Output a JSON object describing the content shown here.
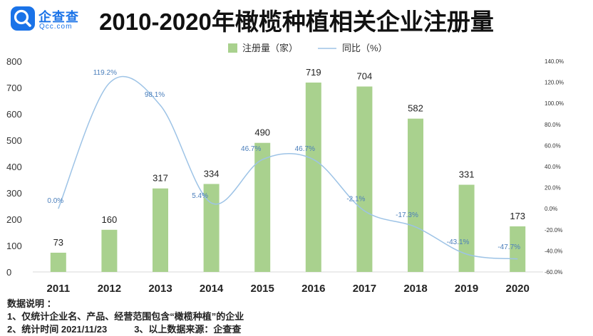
{
  "brand": {
    "name": "企查查",
    "domain": "Qcc.com",
    "accent": "#1a73e8"
  },
  "title": "2010-2020年橄榄种植相关企业注册量",
  "notes": {
    "heading": "数据说明 ：",
    "line1": "1、仅统计企业名、产品、经营范围包含“橄榄种植”的企业",
    "line2a": "2、统计时间 2021/11/23",
    "line2b": "3、以上数据来源：企查查"
  },
  "chart_data": {
    "type": "bar",
    "categories": [
      "2011",
      "2012",
      "2013",
      "2014",
      "2015",
      "2016",
      "2017",
      "2018",
      "2019",
      "2020"
    ],
    "series": [
      {
        "name": "注册量（家）",
        "kind": "bar",
        "color": "#a9d18e",
        "values": [
          73,
          160,
          317,
          334,
          490,
          719,
          704,
          582,
          331,
          173
        ],
        "labels": [
          "73",
          "160",
          "317",
          "334",
          "490",
          "719",
          "704",
          "582",
          "331",
          "173"
        ],
        "axis": "left"
      },
      {
        "name": "同比（%）",
        "kind": "line",
        "color": "#9dc3e6",
        "values": [
          0.0,
          119.2,
          98.1,
          5.4,
          46.7,
          46.7,
          -2.1,
          -17.3,
          -43.1,
          -47.7
        ],
        "labels": [
          "0.0%",
          "119.2%",
          "98.1%",
          "5.4%",
          "46.7%",
          "46.7%",
          "-2.1%",
          "-17.3%",
          "-43.1%",
          "-47.7%"
        ],
        "axis": "right"
      }
    ],
    "y_left": {
      "min": 0,
      "max": 800,
      "ticks": [
        "0",
        "100",
        "200",
        "300",
        "400",
        "500",
        "600",
        "700",
        "800"
      ]
    },
    "y_right": {
      "min": -60,
      "max": 140,
      "ticks": [
        "-60.0%",
        "-40.0%",
        "-20.0%",
        "0.0%",
        "20.0%",
        "40.0%",
        "60.0%",
        "80.0%",
        "100.0%",
        "120.0%",
        "140.0%"
      ]
    },
    "grid": false,
    "legend_position": "top-center",
    "label_color_line": "#4a7ebb"
  }
}
